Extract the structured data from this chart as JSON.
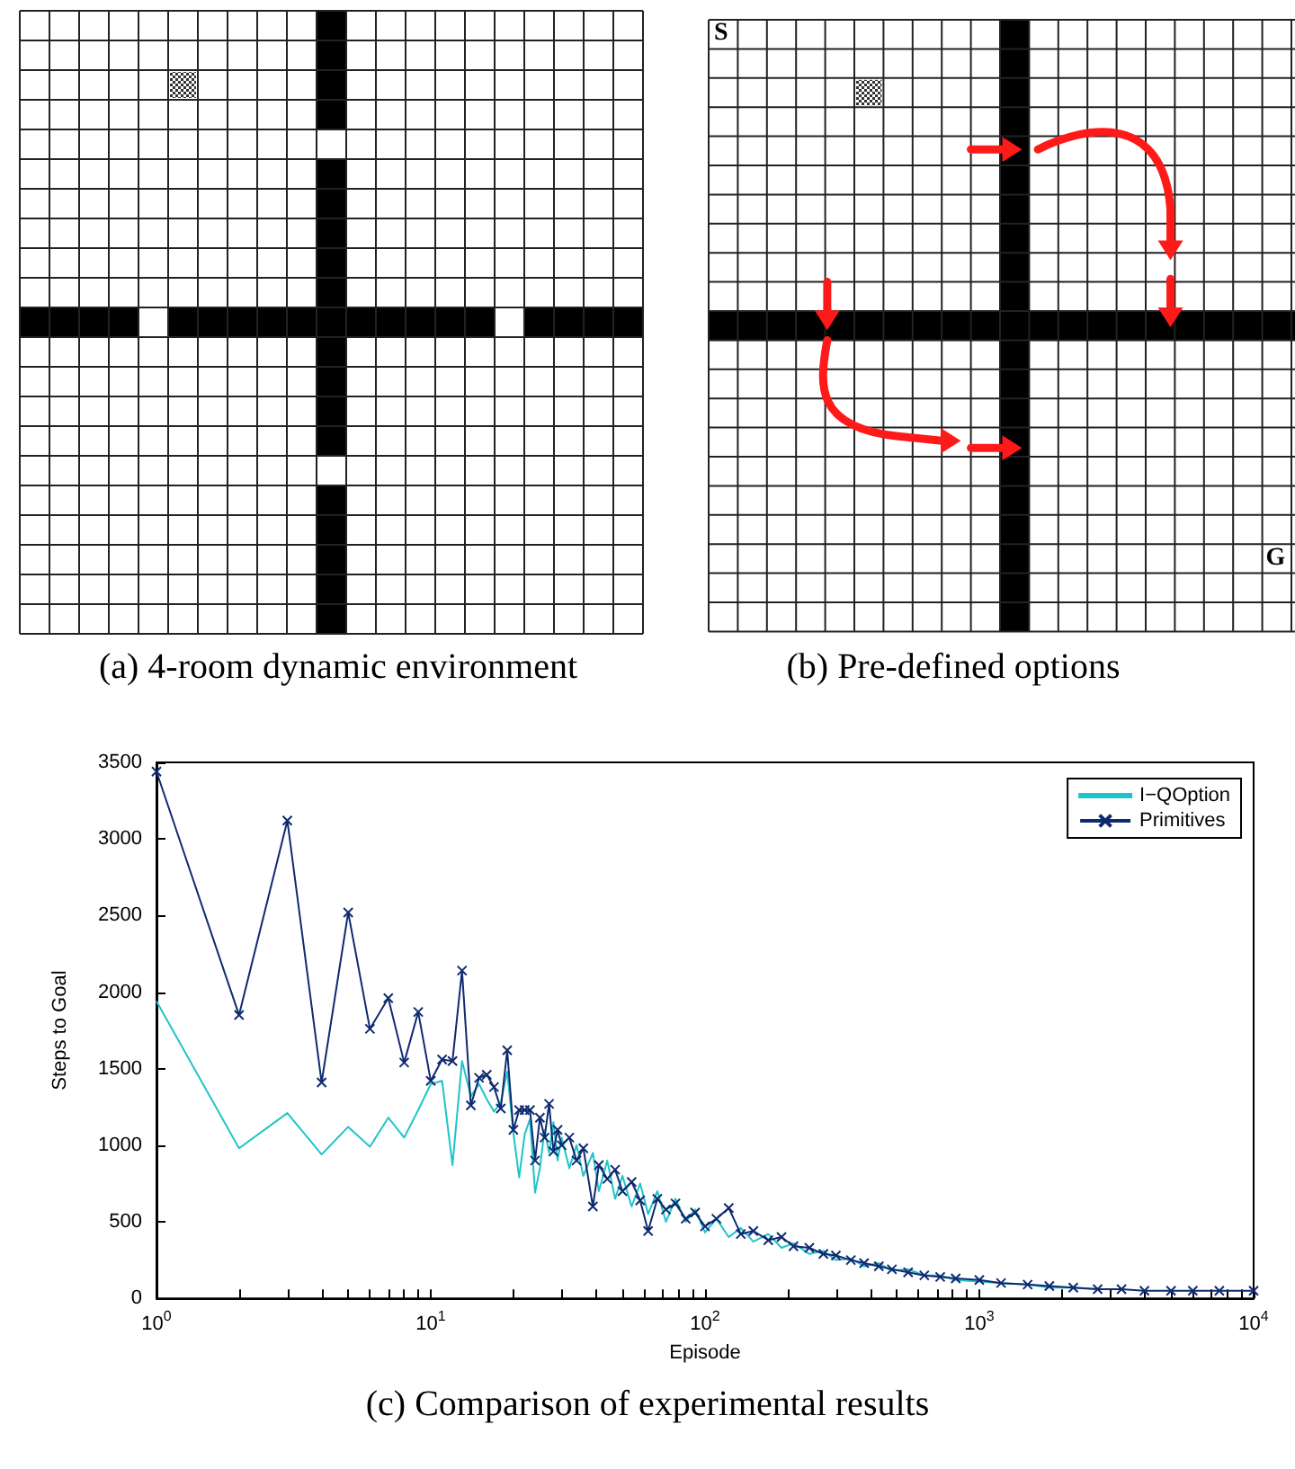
{
  "chart_data": [
    {
      "type": "other",
      "title": "(a) 4-room dynamic environment"
    },
    {
      "type": "other",
      "title": "(b) Pre-defined options",
      "annotations": [
        "S",
        "G"
      ]
    },
    {
      "type": "line",
      "title": "(c) Comparison of experimental results",
      "xlabel": "Episode",
      "ylabel": "Steps to Goal",
      "log": "x",
      "xlim": [
        1,
        10000
      ],
      "ylim": [
        0,
        3500
      ],
      "xticks": [
        {
          "value": 1,
          "label": "10$^{0}$"
        },
        {
          "value": 2,
          "label": null
        },
        {
          "value": 3,
          "label": null
        },
        {
          "value": 4,
          "label": null
        },
        {
          "value": 5,
          "label": null
        },
        {
          "value": 6,
          "label": null
        },
        {
          "value": 7,
          "label": null
        },
        {
          "value": 8,
          "label": null
        },
        {
          "value": 9,
          "label": null
        },
        {
          "value": 10,
          "label": "10$^{1}$"
        },
        {
          "value": 20,
          "label": null
        },
        {
          "value": 30,
          "label": null
        },
        {
          "value": 40,
          "label": null
        },
        {
          "value": 50,
          "label": null
        },
        {
          "value": 60,
          "label": null
        },
        {
          "value": 70,
          "label": null
        },
        {
          "value": 80,
          "label": null
        },
        {
          "value": 90,
          "label": null
        },
        {
          "value": 100,
          "label": "10$^{2}$"
        },
        {
          "value": 200,
          "label": null
        },
        {
          "value": 300,
          "label": null
        },
        {
          "value": 400,
          "label": null
        },
        {
          "value": 500,
          "label": null
        },
        {
          "value": 600,
          "label": null
        },
        {
          "value": 700,
          "label": null
        },
        {
          "value": 800,
          "label": null
        },
        {
          "value": 900,
          "label": null
        },
        {
          "value": 1000,
          "label": "10$^{3}$"
        },
        {
          "value": 2000,
          "label": null
        },
        {
          "value": 3000,
          "label": null
        },
        {
          "value": 4000,
          "label": null
        },
        {
          "value": 5000,
          "label": null
        },
        {
          "value": 6000,
          "label": null
        },
        {
          "value": 7000,
          "label": null
        },
        {
          "value": 8000,
          "label": null
        },
        {
          "value": 9000,
          "label": null
        },
        {
          "value": 10000,
          "label": "10$^{4}$"
        }
      ],
      "yticks": [
        0,
        500,
        1000,
        1500,
        2000,
        2500,
        3000,
        3500
      ],
      "grid": false,
      "legend": "top right",
      "series": [
        {
          "name": "I−QOption",
          "color": "#1fc4c8",
          "marker": "none",
          "x": [
            1,
            2,
            3,
            4,
            5,
            6,
            7,
            8,
            9,
            10,
            11,
            12,
            13,
            14,
            15,
            16,
            17,
            18,
            19,
            20,
            21,
            22,
            23,
            24,
            25,
            26,
            27,
            28,
            29,
            30,
            32,
            34,
            36,
            39,
            41,
            44,
            47,
            50,
            54,
            58,
            62,
            67,
            72,
            78,
            85,
            92,
            100,
            110,
            122,
            135,
            150,
            170,
            190,
            210,
            240,
            270,
            300,
            340,
            380,
            430,
            480,
            550,
            630,
            720,
            820,
            1000,
            1200,
            1500,
            1800,
            2200,
            2700
          ],
          "values": [
            1940,
            980,
            1210,
            940,
            1120,
            990,
            1180,
            1050,
            1230,
            1400,
            1420,
            870,
            1550,
            1320,
            1400,
            1300,
            1220,
            1280,
            1480,
            1080,
            790,
            1070,
            1170,
            690,
            850,
            1100,
            950,
            1150,
            900,
            1050,
            850,
            1000,
            800,
            950,
            700,
            900,
            650,
            800,
            600,
            750,
            550,
            700,
            500,
            650,
            500,
            580,
            430,
            520,
            400,
            460,
            370,
            420,
            330,
            360,
            290,
            310,
            250,
            260,
            210,
            230,
            180,
            190,
            150,
            150,
            120,
            110,
            100,
            90,
            70,
            70,
            60
          ]
        },
        {
          "name": "Primitives",
          "color": "#0f2a70",
          "marker": "cross",
          "x": [
            1,
            2,
            3,
            4,
            5,
            6,
            7,
            8,
            9,
            10,
            11,
            12,
            13,
            14,
            15,
            16,
            17,
            18,
            19,
            20,
            21,
            22,
            23,
            24,
            25,
            26,
            27,
            28,
            29,
            30,
            32,
            34,
            36,
            39,
            41,
            44,
            47,
            50,
            54,
            58,
            62,
            67,
            72,
            78,
            85,
            92,
            100,
            110,
            122,
            135,
            150,
            170,
            190,
            210,
            240,
            270,
            300,
            340,
            380,
            430,
            480,
            550,
            630,
            720,
            820,
            1000,
            1200,
            1500,
            1800,
            2200,
            2700,
            3300,
            4000,
            5000,
            6000,
            7500,
            10000
          ],
          "values": [
            3440,
            1850,
            3120,
            1410,
            2520,
            1760,
            1960,
            1540,
            1870,
            1420,
            1560,
            1550,
            2140,
            1260,
            1440,
            1460,
            1380,
            1240,
            1620,
            1100,
            1230,
            1230,
            1230,
            900,
            1180,
            1050,
            1270,
            960,
            1100,
            1000,
            1050,
            900,
            980,
            600,
            870,
            780,
            840,
            700,
            760,
            640,
            440,
            650,
            580,
            620,
            520,
            560,
            470,
            520,
            590,
            420,
            440,
            380,
            400,
            340,
            330,
            290,
            280,
            250,
            230,
            210,
            190,
            170,
            150,
            140,
            130,
            120,
            100,
            90,
            80,
            70,
            60,
            60,
            50,
            50,
            50,
            50,
            50
          ]
        }
      ]
    }
  ]
}
